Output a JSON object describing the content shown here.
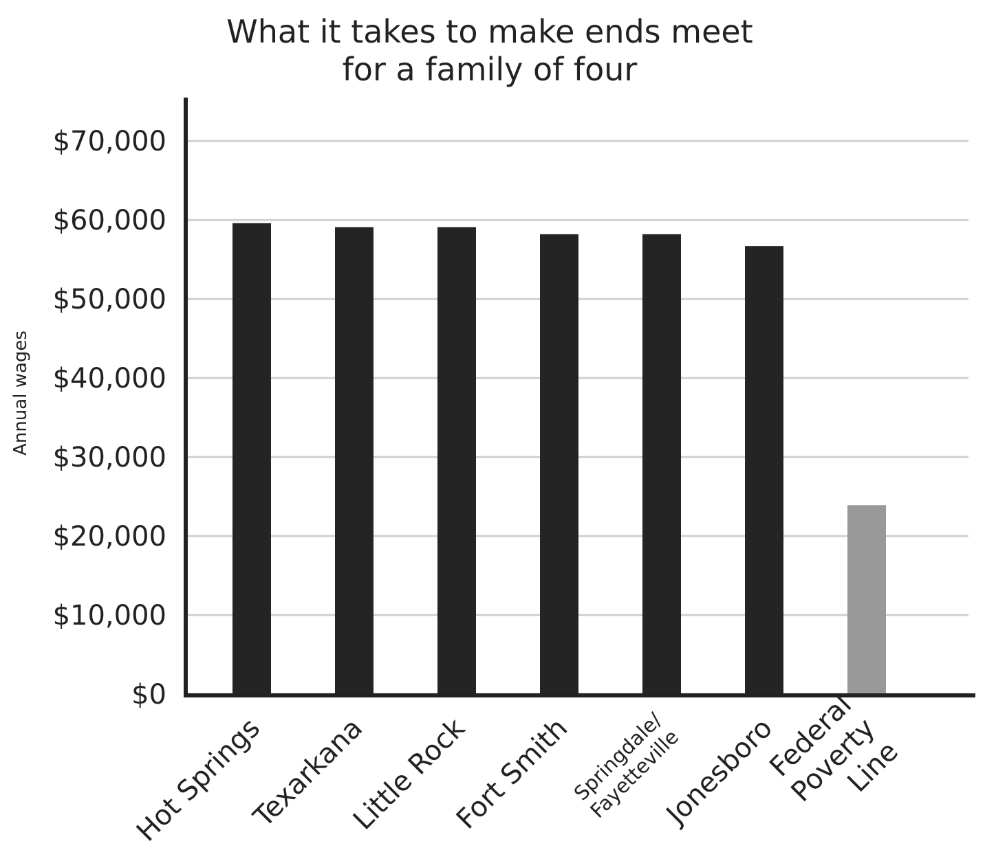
{
  "chart_data": {
    "type": "bar",
    "title": "What it takes to make ends meet\nfor a family of four",
    "y_label": "Annual wages",
    "categories": [
      "Hot Springs",
      "Texarkana",
      "Little Rock",
      "Fort Smith",
      "Springdale/\nFayetteville",
      "Jonesboro",
      "Federal\nPoverty\nLine"
    ],
    "values": [
      59600,
      59100,
      59100,
      58200,
      58200,
      56700,
      23900
    ],
    "colors": [
      "#242424",
      "#242424",
      "#242424",
      "#242424",
      "#242424",
      "#242424",
      "#999999"
    ],
    "ylim": [
      0,
      75500
    ],
    "yticks": [
      {
        "value": 0,
        "label": "$0"
      },
      {
        "value": 10000,
        "label": "$10,000"
      },
      {
        "value": 20000,
        "label": "$20,000"
      },
      {
        "value": 30000,
        "label": "$30,000"
      },
      {
        "value": 40000,
        "label": "$40,000"
      },
      {
        "value": 50000,
        "label": "$50,000"
      },
      {
        "value": 60000,
        "label": "$60,000"
      },
      {
        "value": 70000,
        "label": "$70,000"
      }
    ],
    "grid": true
  }
}
